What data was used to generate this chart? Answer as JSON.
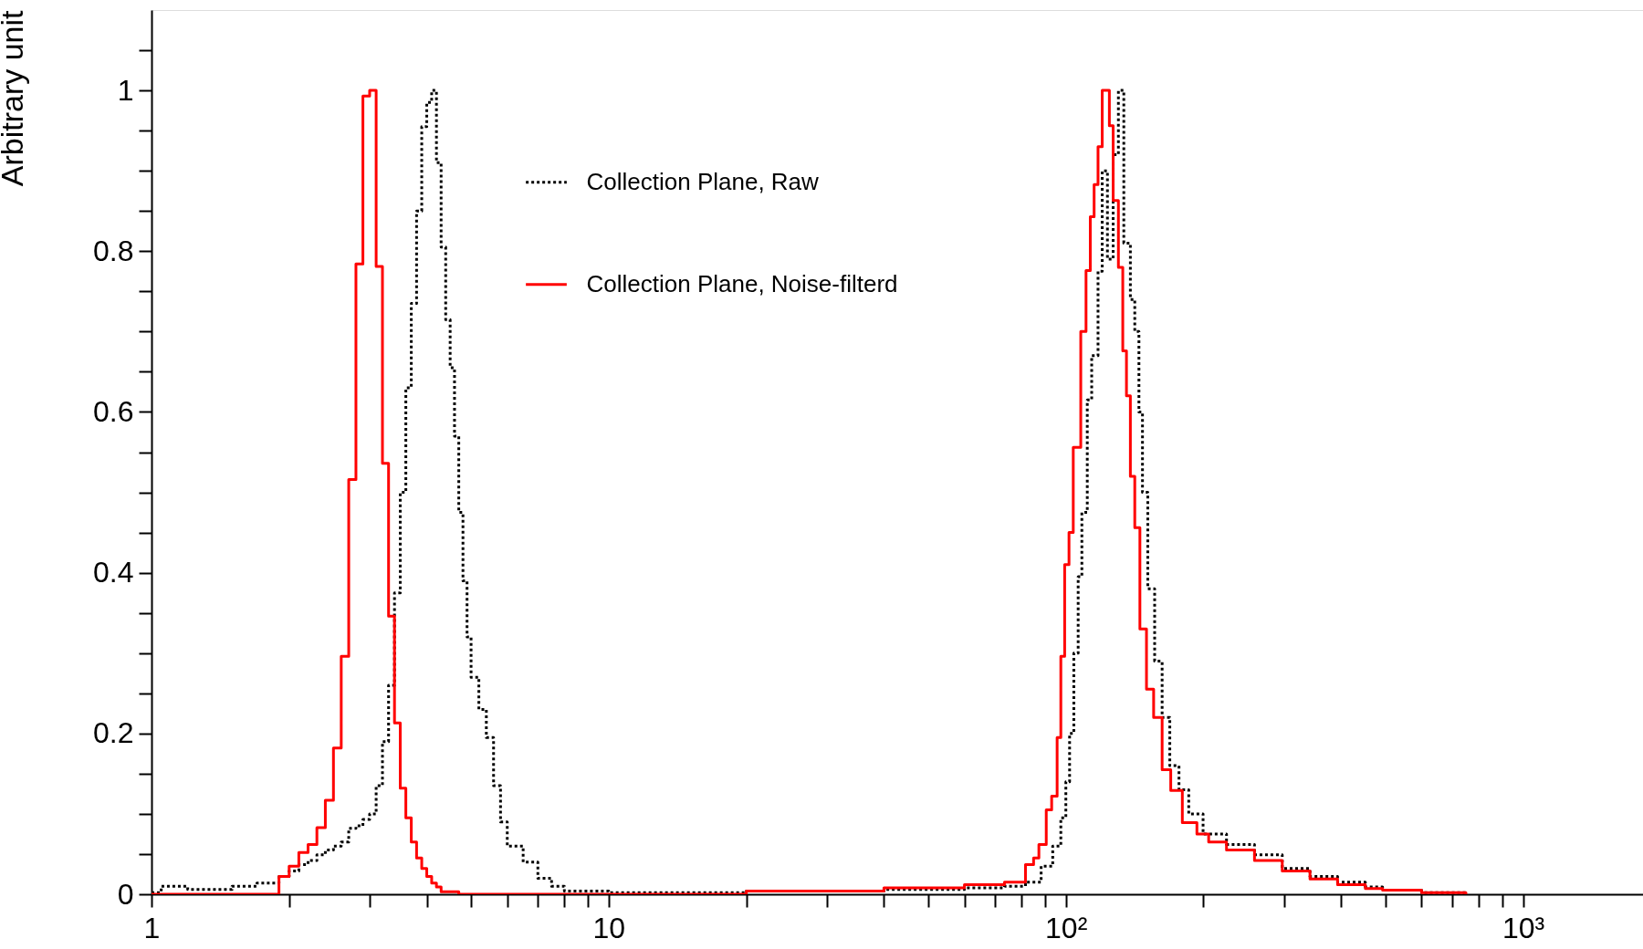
{
  "chart_data": {
    "type": "step",
    "ylabel": "Arbitrary unit",
    "log": "x",
    "xlim": [
      1,
      1830
    ],
    "ylim": [
      0,
      1.1
    ],
    "xticks": [
      1,
      {
        "value": 2,
        "label": null
      },
      {
        "value": 3,
        "label": null
      },
      {
        "value": 4,
        "label": null
      },
      {
        "value": 5,
        "label": null
      },
      {
        "value": 6,
        "label": null
      },
      {
        "value": 7,
        "label": null
      },
      {
        "value": 8,
        "label": null
      },
      {
        "value": 9,
        "label": null
      },
      10,
      {
        "value": 20,
        "label": null
      },
      {
        "value": 30,
        "label": null
      },
      {
        "value": 40,
        "label": null
      },
      {
        "value": 50,
        "label": null
      },
      {
        "value": 60,
        "label": null
      },
      {
        "value": 70,
        "label": null
      },
      {
        "value": 80,
        "label": null
      },
      {
        "value": 90,
        "label": null
      },
      {
        "value": 100,
        "label": "10²"
      },
      {
        "value": 200,
        "label": null
      },
      {
        "value": 300,
        "label": null
      },
      {
        "value": 400,
        "label": null
      },
      {
        "value": 500,
        "label": null
      },
      {
        "value": 600,
        "label": null
      },
      {
        "value": 700,
        "label": null
      },
      {
        "value": 800,
        "label": null
      },
      {
        "value": 900,
        "label": null
      },
      {
        "value": 1000,
        "label": "10³"
      }
    ],
    "yticks": [
      0,
      {
        "value": 0.05,
        "label": null
      },
      {
        "value": 0.1,
        "label": null
      },
      {
        "value": 0.15,
        "label": null
      },
      0.2,
      {
        "value": 0.25,
        "label": null
      },
      {
        "value": 0.3,
        "label": null
      },
      {
        "value": 0.35,
        "label": null
      },
      0.4,
      {
        "value": 0.45,
        "label": null
      },
      {
        "value": 0.5,
        "label": null
      },
      {
        "value": 0.55,
        "label": null
      },
      0.6,
      {
        "value": 0.65,
        "label": null
      },
      {
        "value": 0.7,
        "label": null
      },
      {
        "value": 0.75,
        "label": null
      },
      0.8,
      {
        "value": 0.85,
        "label": null
      },
      {
        "value": 0.9,
        "label": null
      },
      {
        "value": 0.95,
        "label": null
      },
      1,
      {
        "value": 1.05,
        "label": null
      }
    ],
    "grid": false,
    "legend": "top",
    "marker": "none",
    "series": [
      {
        "name": "Collection Plane, Raw",
        "color": "#000000",
        "line_style": "dotted",
        "x": [
          1,
          1.05,
          1.2,
          1.5,
          1.7,
          1.9,
          2.0,
          2.1,
          2.2,
          2.3,
          2.4,
          2.5,
          2.6,
          2.7,
          2.8,
          2.9,
          3.0,
          3.1,
          3.2,
          3.3,
          3.4,
          3.5,
          3.6,
          3.7,
          3.8,
          3.9,
          4.0,
          4.1,
          4.2,
          4.3,
          4.4,
          4.5,
          4.6,
          4.7,
          4.8,
          4.9,
          5.0,
          5.2,
          5.4,
          5.6,
          5.8,
          6.0,
          6.5,
          7.0,
          7.5,
          8.0,
          10,
          20,
          40,
          60,
          73.4,
          81.6,
          88.3,
          93.6,
          97.5,
          100,
          101.9,
          104.1,
          106.4,
          108.4,
          111.4,
          113.9,
          117.6,
          120.1,
          123.3,
          126.9,
          130.3,
          133.9,
          138.4,
          141.5,
          144.5,
          147.1,
          151.1,
          156.4,
          162.4,
          168.8,
          176.8,
          185.7,
          199.6,
          224.6,
          258.6,
          297.4,
          342,
          393,
          452,
          493,
          600,
          750
        ],
        "values": [
          0.002,
          0.01,
          0.006,
          0.01,
          0.014,
          0.022,
          0.029,
          0.037,
          0.042,
          0.049,
          0.055,
          0.06,
          0.065,
          0.082,
          0.085,
          0.093,
          0.1,
          0.135,
          0.19,
          0.26,
          0.375,
          0.5,
          0.63,
          0.735,
          0.85,
          0.955,
          0.985,
          1.0,
          0.91,
          0.805,
          0.715,
          0.655,
          0.57,
          0.475,
          0.39,
          0.32,
          0.27,
          0.23,
          0.195,
          0.135,
          0.09,
          0.06,
          0.04,
          0.02,
          0.01,
          0.004,
          0.002,
          0.004,
          0.006,
          0.008,
          0.01,
          0.015,
          0.035,
          0.06,
          0.095,
          0.14,
          0.2,
          0.3,
          0.395,
          0.475,
          0.615,
          0.67,
          0.775,
          0.9,
          0.79,
          0.92,
          1.0,
          0.81,
          0.74,
          0.7,
          0.6,
          0.5,
          0.38,
          0.29,
          0.22,
          0.16,
          0.13,
          0.1,
          0.075,
          0.062,
          0.049,
          0.032,
          0.022,
          0.015,
          0.009,
          0.005,
          0.002,
          0
        ]
      },
      {
        "name": "Collection Plane, Noise-filterd",
        "color": "#ff0000",
        "line_style": "solid",
        "x": [
          1,
          1.9,
          2.0,
          2.1,
          2.2,
          2.3,
          2.4,
          2.5,
          2.6,
          2.7,
          2.8,
          2.9,
          3.0,
          3.1,
          3.2,
          3.3,
          3.4,
          3.5,
          3.6,
          3.7,
          3.8,
          3.9,
          4.0,
          4.1,
          4.2,
          4.3,
          4.7,
          20,
          40,
          60,
          73.4,
          81.6,
          85.0,
          87.3,
          90.6,
          93.1,
          95.7,
          97.5,
          99.4,
          101.6,
          103.8,
          107.8,
          110.7,
          113.1,
          115.3,
          117.6,
          120.1,
          124.5,
          126.9,
          130.3,
          133.2,
          135.7,
          138.4,
          141.5,
          145.2,
          150.1,
          155.6,
          162.4,
          169.6,
          179.8,
          193.5,
          205.3,
          224.6,
          258.6,
          297.4,
          342,
          393,
          452,
          493,
          600,
          750
        ],
        "values": [
          0,
          0.022,
          0.035,
          0.052,
          0.062,
          0.083,
          0.117,
          0.182,
          0.296,
          0.516,
          0.784,
          0.993,
          1.0,
          0.781,
          0.536,
          0.346,
          0.213,
          0.132,
          0.095,
          0.065,
          0.045,
          0.032,
          0.022,
          0.014,
          0.009,
          0.003,
          0,
          0.004,
          0.008,
          0.012,
          0.015,
          0.037,
          0.045,
          0.062,
          0.105,
          0.122,
          0.195,
          0.296,
          0.41,
          0.45,
          0.556,
          0.7,
          0.776,
          0.843,
          0.883,
          0.93,
          1.0,
          0.956,
          0.863,
          0.78,
          0.676,
          0.62,
          0.52,
          0.456,
          0.33,
          0.255,
          0.22,
          0.155,
          0.129,
          0.089,
          0.075,
          0.065,
          0.055,
          0.042,
          0.029,
          0.019,
          0.012,
          0.007,
          0.005,
          0.002,
          0
        ]
      }
    ]
  }
}
